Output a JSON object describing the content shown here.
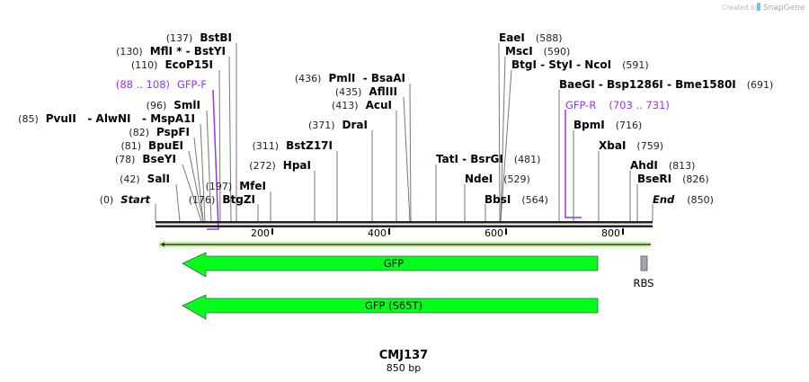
{
  "watermark": {
    "prefix": "Created by",
    "brand": "SnapGene"
  },
  "sequence": {
    "name": "CMJ137",
    "length_label": "850 bp",
    "length_bp": 850
  },
  "ticks": [
    "200",
    "400",
    "600",
    "800"
  ],
  "sites": {
    "bstbi": {
      "pos": "(137)",
      "name": "BstBI"
    },
    "mfli": {
      "pos": "(130)",
      "name": "MflI * - BstYI"
    },
    "ecop15i": {
      "pos": "(110)",
      "name": "EcoP15I"
    },
    "smli": {
      "pos": "(96)",
      "name": "SmlI"
    },
    "pvuii": {
      "pos": "(85)",
      "name": "PvuII   - AlwNI   - MspA1I"
    },
    "pspfi": {
      "pos": "(82)",
      "name": "PspFI"
    },
    "bpuei": {
      "pos": "(81)",
      "name": "BpuEI"
    },
    "bseyi": {
      "pos": "(78)",
      "name": "BseYI"
    },
    "sali": {
      "pos": "(42)",
      "name": "SalI"
    },
    "start": {
      "pos": "(0)",
      "name": "Start"
    },
    "btgzi": {
      "pos": "(176)",
      "name": "BtgZI"
    },
    "mfei": {
      "pos": "(197)",
      "name": "MfeI"
    },
    "hpai": {
      "pos": "(272)",
      "name": "HpaI"
    },
    "bstz17i": {
      "pos": "(311)",
      "name": "BstZ17I"
    },
    "drai": {
      "pos": "(371)",
      "name": "DraI"
    },
    "acui": {
      "pos": "(413)",
      "name": "AcuI"
    },
    "afliii": {
      "pos": "(435)",
      "name": "AflIII"
    },
    "pmli": {
      "pos": "(436)",
      "name": "PmlI  - BsaAI"
    },
    "tati": {
      "pos": "(481)",
      "name": "TatI  - BsrGI"
    },
    "ndei": {
      "pos": "(529)",
      "name": "NdeI"
    },
    "bbsi": {
      "pos": "(564)",
      "name": "BbsI"
    },
    "eaei": {
      "pos": "(588)",
      "name": "EaeI"
    },
    "msci": {
      "pos": "(590)",
      "name": "MscI"
    },
    "btgi": {
      "pos": "(591)",
      "name": "BtgI  - StyI  - NcoI"
    },
    "baegi": {
      "pos": "(691)",
      "name": "BaeGI  - Bsp1286I  - Bme1580I"
    },
    "bpmi": {
      "pos": "(716)",
      "name": "BpmI"
    },
    "xbai": {
      "pos": "(759)",
      "name": "XbaI"
    },
    "ahdi": {
      "pos": "(813)",
      "name": "AhdI"
    },
    "bseri": {
      "pos": "(826)",
      "name": "BseRI"
    },
    "end": {
      "pos": "(850)",
      "name": "End"
    }
  },
  "primers": {
    "gfp_f": {
      "range": "(88 .. 108)",
      "name": "GFP-F"
    },
    "gfp_r": {
      "name": "GFP-R",
      "range": "(703 .. 731)"
    }
  },
  "features": {
    "gfp": {
      "label": "GFP",
      "color": "#00ff19"
    },
    "gfp_s65t": {
      "label": "GFP (S65T)",
      "color": "#00ff19"
    },
    "rbs": {
      "label": "RBS",
      "color": "#a0a4ac"
    }
  },
  "colors": {
    "primer": "#9933ee",
    "backbone": "#222222"
  }
}
